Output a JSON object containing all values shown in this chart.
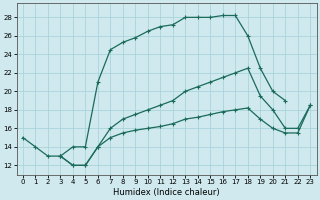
{
  "xlabel": "Humidex (Indice chaleur)",
  "bg_color": "#cfe9ee",
  "grid_color": "#a8d4db",
  "line_color": "#1a6b5a",
  "xlim": [
    -0.5,
    23.5
  ],
  "ylim": [
    11.0,
    29.5
  ],
  "xticks": [
    0,
    1,
    2,
    3,
    4,
    5,
    6,
    7,
    8,
    9,
    10,
    11,
    12,
    13,
    14,
    15,
    16,
    17,
    18,
    19,
    20,
    21,
    22,
    23
  ],
  "yticks": [
    12,
    14,
    16,
    18,
    20,
    22,
    24,
    26,
    28
  ],
  "curve_arch_x": [
    0,
    1,
    2,
    3,
    4,
    5,
    6,
    7,
    8,
    9,
    10,
    11,
    12,
    13,
    14,
    15,
    16,
    17,
    18,
    19,
    20,
    21
  ],
  "curve_arch_y": [
    15,
    14,
    13,
    13,
    14,
    14,
    21,
    24.5,
    25.3,
    25.8,
    26.5,
    27,
    27.2,
    28,
    28,
    28,
    28.2,
    28.2,
    26,
    22.5,
    20,
    19
  ],
  "curve_upper_x": [
    3,
    4,
    5,
    6,
    7,
    8,
    9,
    10,
    11,
    12,
    13,
    14,
    15,
    16,
    17,
    18,
    19,
    20,
    21,
    22,
    23
  ],
  "curve_upper_y": [
    13,
    12,
    12,
    14,
    16,
    17,
    17.5,
    18,
    18.5,
    19,
    20,
    20.5,
    21,
    21.5,
    22,
    22.5,
    19.5,
    18,
    16,
    16,
    18.5
  ],
  "curve_lower_x": [
    3,
    4,
    5,
    6,
    7,
    8,
    9,
    10,
    11,
    12,
    13,
    14,
    15,
    16,
    17,
    18,
    19,
    20,
    21,
    22,
    23
  ],
  "curve_lower_y": [
    13,
    12,
    12,
    14,
    15,
    15.5,
    15.8,
    16,
    16.2,
    16.5,
    17,
    17.2,
    17.5,
    17.8,
    18,
    18.2,
    17,
    16,
    15.5,
    15.5,
    18.5
  ]
}
